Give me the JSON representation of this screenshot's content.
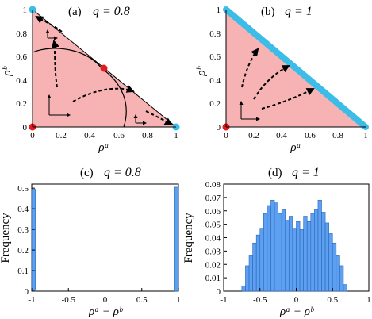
{
  "colors": {
    "triangle_fill": "#f7b3b4",
    "edge_blue": "#3cbde8",
    "bar_blue": "#5d9ff0",
    "bar_edge": "#2b67b8",
    "fixed_red": "#e41a1c",
    "fixed_cyan": "#3cbde8"
  },
  "chart_data": [
    {
      "panel": "a",
      "type": "diagram",
      "label": "(a)",
      "title": "q = 0.8",
      "xlabel": "ρᵃ",
      "ylabel": "ρᵇ",
      "xticks": [
        "0",
        "0.2",
        "0.4",
        "0.6",
        "0.8",
        "1"
      ],
      "yticks": [
        "0",
        "0.2",
        "0.4",
        "0.6",
        "0.8",
        "1"
      ],
      "xlim": [
        0,
        1
      ],
      "ylim": [
        0,
        1
      ],
      "stable_points": [
        [
          0,
          1
        ],
        [
          1,
          0
        ]
      ],
      "unstable_points": [
        [
          0,
          0
        ],
        [
          0.5,
          0.5
        ]
      ]
    },
    {
      "panel": "b",
      "type": "diagram",
      "label": "(b)",
      "title": "q = 1",
      "xlabel": "ρᵃ",
      "ylabel": "ρᵇ",
      "xticks": [
        "0",
        "0.2",
        "0.4",
        "0.6",
        "0.8",
        "1"
      ],
      "yticks": [
        "0",
        "0.2",
        "0.4",
        "0.6",
        "0.8",
        "1"
      ],
      "xlim": [
        0,
        1
      ],
      "ylim": [
        0,
        1
      ],
      "stable_line": [
        [
          0,
          1
        ],
        [
          1,
          0
        ]
      ],
      "unstable_points": [
        [
          0,
          0
        ]
      ]
    },
    {
      "panel": "c",
      "type": "bar",
      "label": "(c)",
      "title": "q = 0.8",
      "xlabel": "ρᵃ − ρᵇ",
      "ylabel": "Frequency",
      "xticks": [
        "-1",
        "-0.5",
        "0",
        "0.5",
        "1"
      ],
      "yticks": [
        "0",
        "0.1",
        "0.2",
        "0.3",
        "0.4",
        "0.5"
      ],
      "xlim": [
        -1,
        1
      ],
      "ylim": [
        0,
        0.52
      ],
      "bin_width": 0.05,
      "bins": [
        {
          "x": -1.0,
          "value": 0.495
        },
        {
          "x": 0.95,
          "value": 0.505
        }
      ]
    },
    {
      "panel": "d",
      "type": "bar",
      "label": "(d)",
      "title": "q = 1",
      "xlabel": "ρᵃ − ρᵇ",
      "ylabel": "Frequency",
      "xticks": [
        "-1",
        "-0.5",
        "0",
        "0.5",
        "1"
      ],
      "yticks": [
        "0",
        "0.01",
        "0.02",
        "0.03",
        "0.04",
        "0.05",
        "0.06",
        "0.07",
        "0.08"
      ],
      "xlim": [
        -1,
        1
      ],
      "ylim": [
        0,
        0.08
      ],
      "bin_width": 0.05,
      "bins": [
        {
          "x": -0.75,
          "value": 0.004
        },
        {
          "x": -0.7,
          "value": 0.019
        },
        {
          "x": -0.65,
          "value": 0.027
        },
        {
          "x": -0.6,
          "value": 0.036
        },
        {
          "x": -0.55,
          "value": 0.042
        },
        {
          "x": -0.5,
          "value": 0.047
        },
        {
          "x": -0.45,
          "value": 0.058
        },
        {
          "x": -0.4,
          "value": 0.064
        },
        {
          "x": -0.35,
          "value": 0.068
        },
        {
          "x": -0.3,
          "value": 0.066
        },
        {
          "x": -0.25,
          "value": 0.058
        },
        {
          "x": -0.2,
          "value": 0.061
        },
        {
          "x": -0.15,
          "value": 0.053
        },
        {
          "x": -0.1,
          "value": 0.056
        },
        {
          "x": -0.05,
          "value": 0.047
        },
        {
          "x": 0.0,
          "value": 0.052
        },
        {
          "x": 0.05,
          "value": 0.046
        },
        {
          "x": 0.1,
          "value": 0.056
        },
        {
          "x": 0.15,
          "value": 0.052
        },
        {
          "x": 0.2,
          "value": 0.058
        },
        {
          "x": 0.25,
          "value": 0.061
        },
        {
          "x": 0.3,
          "value": 0.068
        },
        {
          "x": 0.35,
          "value": 0.059
        },
        {
          "x": 0.4,
          "value": 0.051
        },
        {
          "x": 0.45,
          "value": 0.043
        },
        {
          "x": 0.5,
          "value": 0.036
        },
        {
          "x": 0.55,
          "value": 0.027
        },
        {
          "x": 0.6,
          "value": 0.019
        },
        {
          "x": 0.65,
          "value": 0.005
        }
      ]
    }
  ]
}
